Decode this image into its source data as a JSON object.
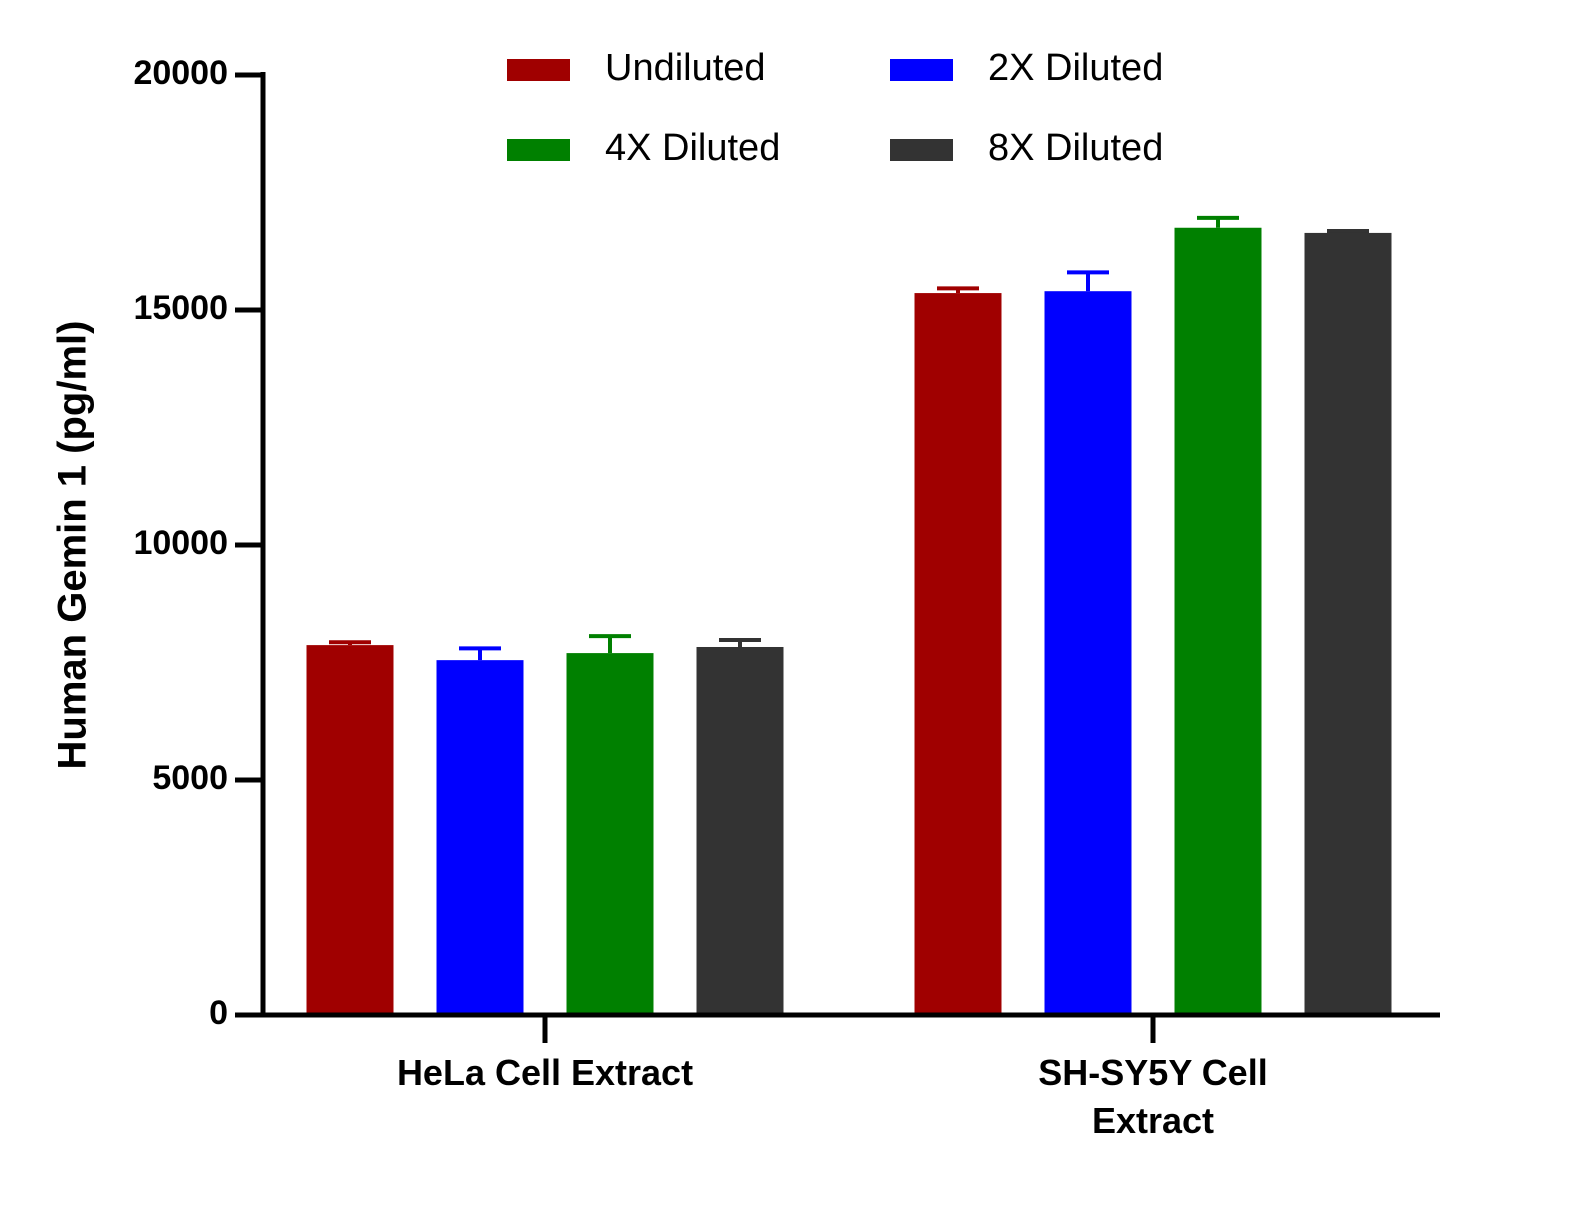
{
  "chart_data": {
    "type": "bar",
    "y_label": "Human Gemin 1 (pg/ml)",
    "categories": [
      "HeLa Cell Extract",
      "SH-SY5Y Cell Extract"
    ],
    "series": [
      {
        "name": "Undiluted",
        "color": "#a00000",
        "values": [
          7870,
          15360
        ],
        "errors": [
          60,
          100
        ]
      },
      {
        "name": "2X Diluted",
        "color": "#0000ff",
        "values": [
          7550,
          15400
        ],
        "errors": [
          250,
          400
        ]
      },
      {
        "name": "4X Diluted",
        "color": "#008000",
        "values": [
          7700,
          16750
        ],
        "errors": [
          360,
          210
        ]
      },
      {
        "name": "8X Diluted",
        "color": "#333333",
        "values": [
          7830,
          16640
        ],
        "errors": [
          150,
          40
        ]
      }
    ],
    "ylim": [
      0,
      20000
    ],
    "yticks": [
      0,
      5000,
      10000,
      15000,
      20000
    ]
  }
}
